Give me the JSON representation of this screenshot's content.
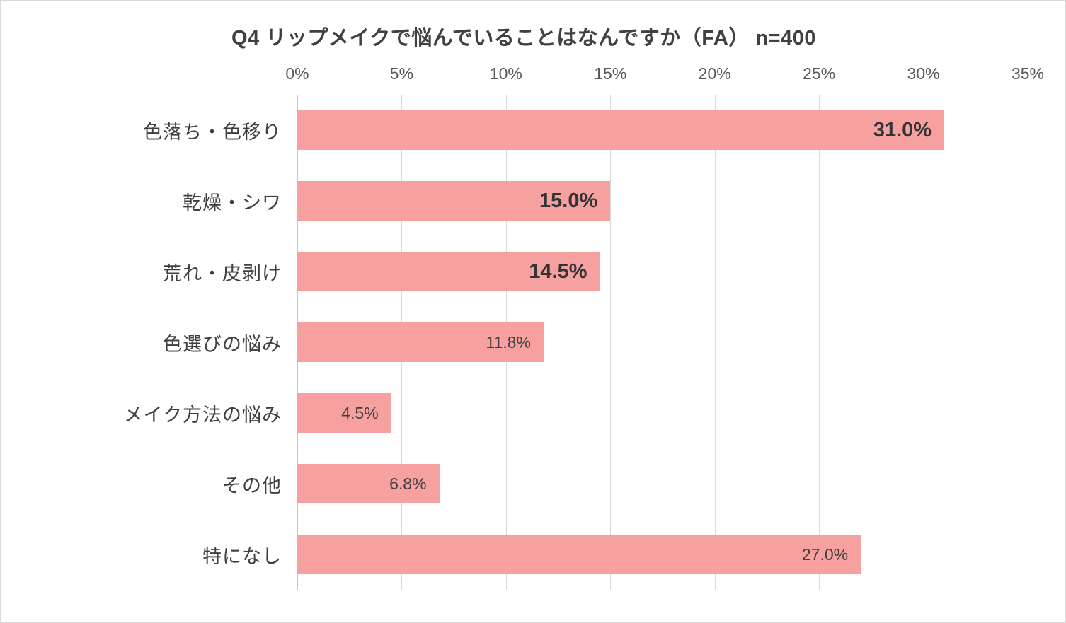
{
  "chart_data": {
    "type": "bar",
    "orientation": "horizontal",
    "title": "Q4 リップメイクで悩んでいることはなんですか（FA） n=400",
    "categories": [
      "色落ち・色移り",
      "乾燥・シワ",
      "荒れ・皮剥け",
      "色選びの悩み",
      "メイク方法の悩み",
      "その他",
      "特になし"
    ],
    "values": [
      31.0,
      15.0,
      14.5,
      11.8,
      4.5,
      6.8,
      27.0
    ],
    "value_labels": [
      "31.0%",
      "15.0%",
      "14.5%",
      "11.8%",
      "4.5%",
      "6.8%",
      "27.0%"
    ],
    "label_bold": [
      true,
      true,
      true,
      false,
      false,
      false,
      false
    ],
    "xlabel": "",
    "ylabel": "",
    "xlim": [
      0,
      35
    ],
    "x_ticks": [
      "0%",
      "5%",
      "10%",
      "15%",
      "20%",
      "25%",
      "30%",
      "35%"
    ],
    "x_tick_values": [
      0,
      5,
      10,
      15,
      20,
      25,
      30,
      35
    ],
    "grid": true,
    "legend": "none",
    "bar_color": "#f7a0a0",
    "gridline_color": "#d9d9d9",
    "title_color": "#404040",
    "tick_color": "#595959",
    "category_color": "#3f3f3f"
  }
}
